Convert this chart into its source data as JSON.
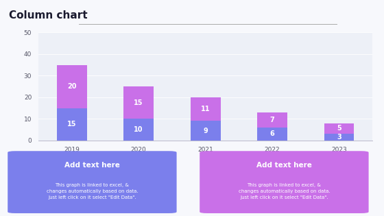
{
  "title": "Column chart",
  "categories": [
    "2019",
    "2020",
    "2021",
    "2022",
    "2023"
  ],
  "bottom_values": [
    15,
    10,
    9,
    6,
    3
  ],
  "top_values": [
    20,
    15,
    11,
    7,
    5
  ],
  "bottom_color": "#7B7FEC",
  "top_color": "#C970E8",
  "ylim": [
    0,
    50
  ],
  "yticks": [
    0,
    10,
    20,
    30,
    40,
    50
  ],
  "bg_chart": "#EDF0F7",
  "bg_slide": "#F7F8FC",
  "title_color": "#1A1A2E",
  "box1_color": "#7B7FEC",
  "box2_color": "#C970E8",
  "box_title": "Add text here",
  "box_text": "This graph is linked to excel, &\nchanges automatically based on data.\nJust left click on it select \"Edit Data\".",
  "title_fontsize": 11,
  "tick_fontsize": 6.5,
  "label_fontsize": 7,
  "corner_accent_color": "#7B83EB",
  "line_color": "#AAAAAA"
}
